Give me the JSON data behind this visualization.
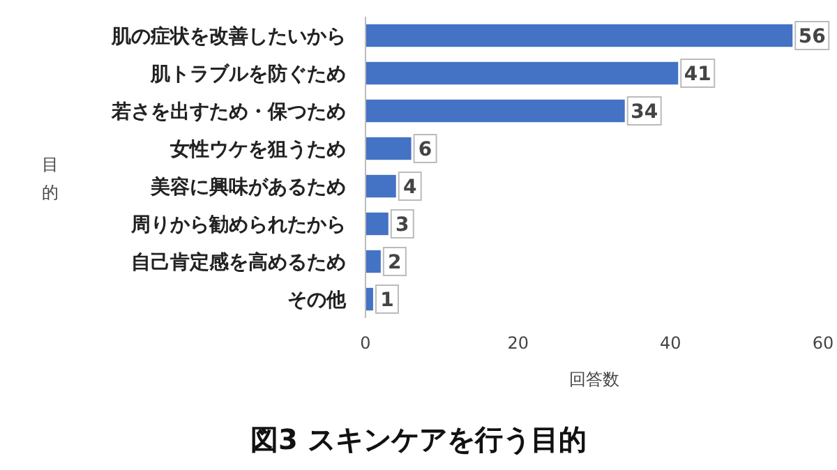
{
  "chart_data": {
    "type": "bar",
    "orientation": "horizontal",
    "title": "図3 スキンケアを行う目的",
    "xlabel": "回答数",
    "ylabel": "目的",
    "categories": [
      "肌の症状を改善したいから",
      "肌トラブルを防ぐため",
      "若さを出すため・保つため",
      "女性ウケを狙うため",
      "美容に興味があるため",
      "周りから勧められたから",
      "自己肯定感を高めるため",
      "その他"
    ],
    "values": [
      56,
      41,
      34,
      6,
      4,
      3,
      2,
      1
    ],
    "color": "#4472c4",
    "xlim": [
      0,
      60
    ],
    "xticks": [
      0,
      20,
      40,
      60
    ],
    "data_labels": true,
    "grid": false
  }
}
